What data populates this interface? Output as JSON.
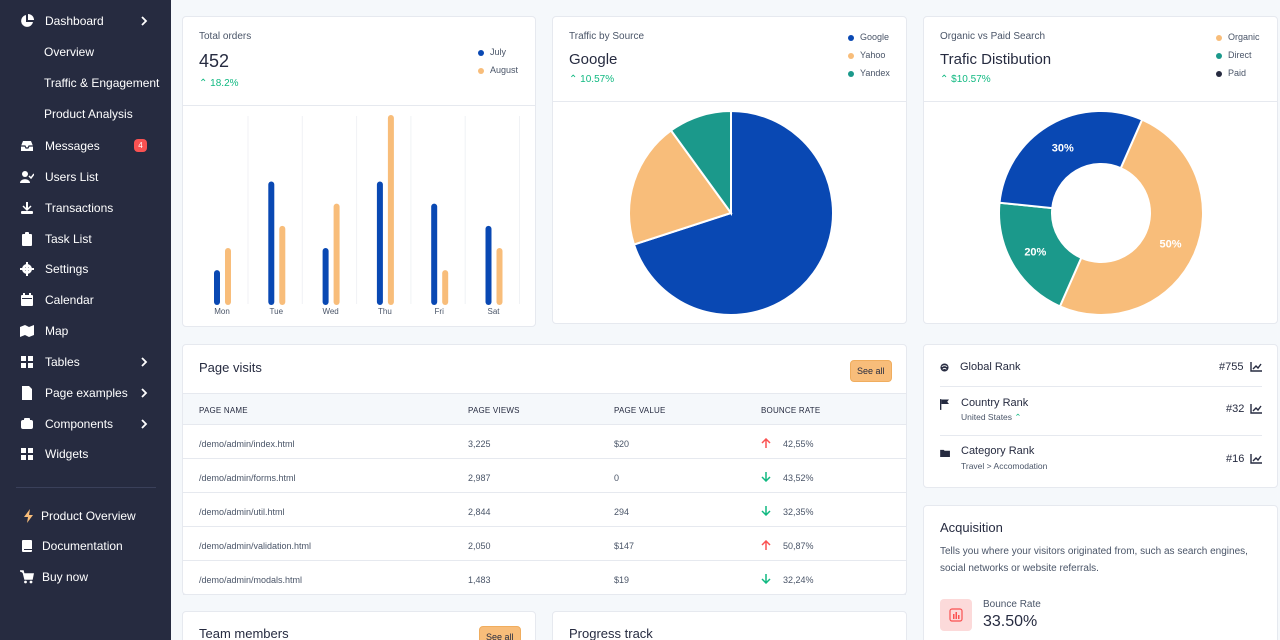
{
  "sidebar": {
    "dashboard": "Dashboard",
    "sub": [
      "Overview",
      "Traffic & Engagement",
      "Product Analysis"
    ],
    "items": [
      {
        "label": "Messages",
        "icon": "inbox-icon",
        "badge": "4"
      },
      {
        "label": "Users List",
        "icon": "user-check-icon"
      },
      {
        "label": "Transactions",
        "icon": "cash-icon"
      },
      {
        "label": "Task List",
        "icon": "clipboard-icon"
      },
      {
        "label": "Settings",
        "icon": "gear-icon"
      },
      {
        "label": "Calendar",
        "icon": "calendar-icon"
      },
      {
        "label": "Map",
        "icon": "map-icon"
      },
      {
        "label": "Tables",
        "icon": "table-icon"
      },
      {
        "label": "Page examples",
        "icon": "document-icon"
      },
      {
        "label": "Components",
        "icon": "puzzle-icon"
      },
      {
        "label": "Widgets",
        "icon": "grid-icon"
      }
    ],
    "bottom": [
      {
        "label": "Product Overview",
        "icon": "bolt-icon"
      },
      {
        "label": "Documentation",
        "icon": "book-icon"
      },
      {
        "label": "Buy now",
        "icon": "cart-icon"
      }
    ]
  },
  "orders": {
    "title": "Total orders",
    "value": "452",
    "change": "18.2%",
    "legend": [
      "July",
      "August"
    ]
  },
  "traffic": {
    "title": "Traffic by Source",
    "value": "Google",
    "change": "10.57%",
    "legend": [
      "Google",
      "Yahoo",
      "Yandex"
    ]
  },
  "organic": {
    "title": "Organic vs Paid Search",
    "value": "Trafic Distibution",
    "change": "$10.57%",
    "legend": [
      "Organic",
      "Direct",
      "Paid"
    ]
  },
  "page_visits": {
    "title": "Page visits",
    "see_all": "See all",
    "columns": [
      "PAGE NAME",
      "PAGE VIEWS",
      "PAGE VALUE",
      "BOUNCE RATE"
    ],
    "rows": [
      {
        "name": "/demo/admin/index.html",
        "views": "3,225",
        "value": "$20",
        "bounce": "42,55%",
        "dir": "up"
      },
      {
        "name": "/demo/admin/forms.html",
        "views": "2,987",
        "value": "0",
        "bounce": "43,52%",
        "dir": "down"
      },
      {
        "name": "/demo/admin/util.html",
        "views": "2,844",
        "value": "294",
        "bounce": "32,35%",
        "dir": "down"
      },
      {
        "name": "/demo/admin/validation.html",
        "views": "2,050",
        "value": "$147",
        "bounce": "50,87%",
        "dir": "up"
      },
      {
        "name": "/demo/admin/modals.html",
        "views": "1,483",
        "value": "$19",
        "bounce": "32,24%",
        "dir": "down"
      }
    ]
  },
  "ranks": {
    "global": {
      "label": "Global Rank",
      "value": "#755"
    },
    "country": {
      "label": "Country Rank",
      "sub": "United States",
      "value": "#32"
    },
    "category": {
      "label": "Category Rank",
      "sub": "Travel > Accomodation",
      "value": "#16"
    }
  },
  "acquisition": {
    "title": "Acquisition",
    "desc": "Tells you where your visitors originated from, such as search engines, social networks or website referrals.",
    "metric_label": "Bounce Rate",
    "metric_value": "33.50%"
  },
  "team": {
    "title": "Team members",
    "see_all": "See all"
  },
  "progress": {
    "title": "Progress track"
  },
  "colors": {
    "blue": "#0948b3",
    "orange": "#f8bd7a",
    "teal": "#1b998b",
    "dark": "#262b40"
  },
  "chart_data": [
    {
      "type": "bar",
      "title": "Total orders",
      "categories": [
        "Mon",
        "Tue",
        "Wed",
        "Thu",
        "Fri",
        "Sat"
      ],
      "series": [
        {
          "name": "July",
          "values": [
            13,
            53,
            23,
            53,
            43,
            33
          ]
        },
        {
          "name": "August",
          "values": [
            23,
            33,
            43,
            83,
            13,
            23
          ]
        }
      ],
      "ylim": [
        0,
        83
      ]
    },
    {
      "type": "pie",
      "title": "Traffic by Source",
      "labels": [
        "Google",
        "Yahoo",
        "Yandex"
      ],
      "values": [
        70,
        20,
        10
      ]
    },
    {
      "type": "pie",
      "title": "Trafic Distibution",
      "labels": [
        "Organic",
        "Direct",
        "Paid"
      ],
      "values": [
        50,
        20,
        30
      ],
      "data_labels": [
        "50%",
        "20%",
        "30%"
      ]
    }
  ]
}
